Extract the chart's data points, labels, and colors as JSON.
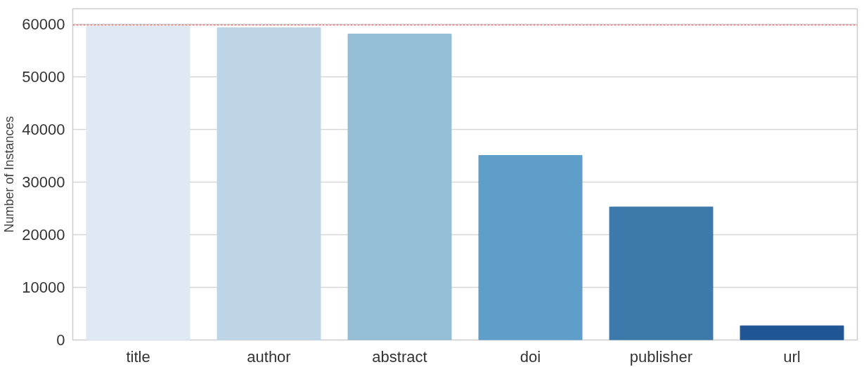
{
  "chart_data": {
    "type": "bar",
    "ylabel": "Number of Instances",
    "categories": [
      "title",
      "author",
      "abstract",
      "doi",
      "publisher",
      "url"
    ],
    "values": [
      59700,
      59400,
      58200,
      35100,
      25300,
      2700
    ],
    "colors": [
      "#dee9f5",
      "#bed5e8",
      "#94bdd6",
      "#5e9ec9",
      "#3d7aab",
      "#1f5594"
    ],
    "ylim": [
      0,
      63000
    ],
    "yticks": [
      0,
      10000,
      20000,
      30000,
      40000,
      50000,
      60000
    ],
    "grid": "y",
    "ref_lines": [
      {
        "axis": "y",
        "value": 59900,
        "color": "#e8383d",
        "line_style": "dashed"
      }
    ]
  }
}
